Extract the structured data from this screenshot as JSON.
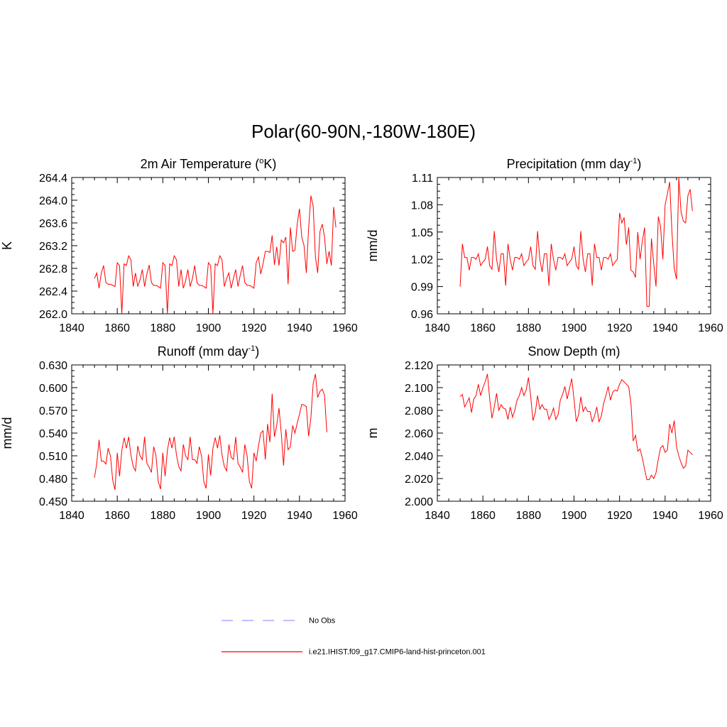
{
  "figure": {
    "title": "Polar(60-90N,-180W-180E)"
  },
  "legend": {
    "position": "bottom-center",
    "entries": [
      {
        "label": "No Obs",
        "color": "#9999ff",
        "style": "dashed"
      },
      {
        "label": "i.e21.IHIST.f09_g17.CMIP6-land-hist-princeton.001",
        "color": "#ff0000",
        "style": "solid"
      }
    ]
  },
  "chart_data": [
    {
      "type": "line",
      "title": "2m Air Temperature (",
      "title_sup": "o",
      "title_after": "K)",
      "ylabel": "K",
      "xlim": [
        1840,
        1960
      ],
      "ylim": [
        262.0,
        264.4
      ],
      "xticks": [
        1840,
        1860,
        1880,
        1900,
        1920,
        1940,
        1960
      ],
      "yticks": [
        "262.0",
        "262.4",
        "262.8",
        "263.2",
        "263.6",
        "264.0",
        "264.4"
      ],
      "x_start": 1850,
      "series": [
        {
          "color": "#ff0000",
          "values": [
            262.62,
            262.72,
            262.45,
            262.72,
            262.85,
            262.55,
            262.52,
            262.52,
            262.5,
            262.48,
            262.9,
            262.85,
            262.0,
            262.88,
            262.85,
            263.02,
            262.95,
            262.48,
            262.72,
            262.48,
            262.6,
            262.78,
            262.48,
            262.7,
            262.86,
            262.55,
            262.5,
            262.5,
            262.48,
            262.45,
            262.9,
            262.85,
            262.0,
            262.88,
            262.85,
            263.02,
            262.95,
            262.48,
            262.78,
            262.45,
            262.58,
            262.78,
            262.48,
            262.62,
            262.85,
            262.55,
            262.5,
            262.5,
            262.48,
            262.45,
            262.9,
            262.85,
            262.0,
            262.88,
            262.85,
            263.02,
            262.95,
            262.48,
            262.62,
            262.72,
            262.45,
            262.62,
            262.78,
            262.48,
            262.68,
            262.85,
            262.55,
            262.5,
            262.5,
            262.48,
            262.45,
            262.9,
            263.0,
            262.7,
            262.88,
            263.1,
            263.1,
            263.08,
            263.38,
            262.86,
            263.18,
            262.85,
            263.3,
            263.25,
            263.35,
            262.52,
            263.52,
            263.1,
            263.12,
            263.58,
            263.85,
            263.35,
            263.2,
            262.72,
            263.5,
            264.08,
            263.9,
            263.0,
            262.72,
            263.45,
            263.58,
            263.35,
            262.88,
            263.1,
            262.85,
            263.88,
            263.52
          ]
        }
      ]
    },
    {
      "type": "line",
      "title": "Precipitation (mm day",
      "title_sup": "-1",
      "title_after": ")",
      "ylabel": "mm/d",
      "xlim": [
        1840,
        1960
      ],
      "ylim": [
        0.96,
        1.11
      ],
      "xticks": [
        1840,
        1860,
        1880,
        1900,
        1920,
        1940,
        1960
      ],
      "yticks": [
        "0.96",
        "0.99",
        "1.02",
        "1.05",
        "1.08",
        "1.11"
      ],
      "x_start": 1850,
      "series": [
        {
          "color": "#ff0000",
          "values": [
            0.99,
            1.037,
            1.022,
            1.022,
            1.008,
            1.022,
            1.022,
            1.02,
            1.026,
            1.013,
            1.017,
            1.02,
            1.034,
            1.013,
            1.009,
            1.051,
            1.02,
            1.006,
            1.026,
            1.026,
            0.991,
            1.037,
            1.02,
            1.008,
            1.022,
            1.022,
            1.02,
            1.026,
            1.013,
            1.017,
            1.02,
            1.034,
            1.013,
            1.009,
            1.051,
            1.02,
            1.006,
            1.026,
            1.026,
            0.991,
            1.037,
            1.02,
            1.008,
            1.022,
            1.022,
            1.02,
            1.026,
            1.013,
            1.017,
            1.02,
            1.034,
            1.013,
            1.009,
            1.051,
            1.02,
            1.006,
            1.026,
            1.026,
            0.991,
            1.037,
            1.022,
            1.022,
            1.008,
            1.022,
            1.022,
            1.02,
            1.026,
            1.013,
            1.017,
            1.02,
            1.071,
            1.06,
            1.066,
            1.036,
            1.055,
            1.008,
            1.006,
            1.0,
            1.05,
            1.02,
            1.04,
            1.055,
            0.968,
            0.968,
            1.043,
            1.015,
            0.99,
            1.067,
            1.056,
            1.02,
            1.08,
            1.092,
            1.105,
            1.05,
            1.01,
            0.998,
            1.11,
            1.072,
            1.062,
            1.06,
            1.09,
            1.097,
            1.073
          ]
        }
      ]
    },
    {
      "type": "line",
      "title": "Runoff (mm day",
      "title_sup": "-1",
      "title_after": ")",
      "ylabel": "mm/d",
      "xlim": [
        1840,
        1960
      ],
      "ylim": [
        0.45,
        0.63
      ],
      "xticks": [
        1840,
        1860,
        1880,
        1900,
        1920,
        1940,
        1960
      ],
      "yticks": [
        "0.450",
        "0.480",
        "0.510",
        "0.540",
        "0.570",
        "0.600",
        "0.630"
      ],
      "x_start": 1850,
      "series": [
        {
          "color": "#ff0000",
          "values": [
            0.481,
            0.5,
            0.531,
            0.503,
            0.503,
            0.499,
            0.52,
            0.51,
            0.478,
            0.465,
            0.514,
            0.483,
            0.517,
            0.534,
            0.52,
            0.535,
            0.511,
            0.496,
            0.49,
            0.523,
            0.51,
            0.505,
            0.535,
            0.5,
            0.495,
            0.488,
            0.522,
            0.51,
            0.476,
            0.466,
            0.514,
            0.483,
            0.517,
            0.534,
            0.52,
            0.535,
            0.511,
            0.496,
            0.49,
            0.525,
            0.51,
            0.505,
            0.535,
            0.505,
            0.505,
            0.5,
            0.522,
            0.51,
            0.476,
            0.467,
            0.512,
            0.484,
            0.52,
            0.534,
            0.52,
            0.537,
            0.511,
            0.496,
            0.49,
            0.525,
            0.508,
            0.505,
            0.535,
            0.5,
            0.495,
            0.488,
            0.525,
            0.51,
            0.476,
            0.467,
            0.514,
            0.503,
            0.523,
            0.54,
            0.543,
            0.505,
            0.552,
            0.528,
            0.592,
            0.535,
            0.55,
            0.573,
            0.54,
            0.497,
            0.545,
            0.518,
            0.522,
            0.55,
            0.54,
            0.553,
            0.565,
            0.578,
            0.577,
            0.575,
            0.536,
            0.56,
            0.605,
            0.618,
            0.587,
            0.595,
            0.598,
            0.59,
            0.541
          ]
        }
      ]
    },
    {
      "type": "line",
      "title": "Snow Depth (m)",
      "title_sup": "",
      "title_after": "",
      "ylabel": "m",
      "xlim": [
        1840,
        1960
      ],
      "ylim": [
        2.0,
        2.12
      ],
      "xticks": [
        1840,
        1860,
        1880,
        1900,
        1920,
        1940,
        1960
      ],
      "yticks": [
        "2.000",
        "2.020",
        "2.040",
        "2.060",
        "2.080",
        "2.100",
        "2.120"
      ],
      "x_start": 1850,
      "series": [
        {
          "color": "#ff0000",
          "values": [
            2.092,
            2.094,
            2.083,
            2.087,
            2.091,
            2.078,
            2.09,
            2.093,
            2.103,
            2.093,
            2.1,
            2.105,
            2.112,
            2.09,
            2.073,
            2.083,
            2.095,
            2.08,
            2.085,
            2.082,
            2.081,
            2.072,
            2.083,
            2.074,
            2.08,
            2.089,
            2.093,
            2.1,
            2.093,
            2.098,
            2.109,
            2.092,
            2.071,
            2.078,
            2.093,
            2.081,
            2.085,
            2.081,
            2.081,
            2.072,
            2.076,
            2.082,
            2.072,
            2.076,
            2.089,
            2.094,
            2.101,
            2.09,
            2.099,
            2.108,
            2.09,
            2.07,
            2.076,
            2.092,
            2.079,
            2.083,
            2.079,
            2.079,
            2.07,
            2.075,
            2.083,
            2.07,
            2.075,
            2.086,
            2.093,
            2.101,
            2.089,
            2.096,
            2.098,
            2.097,
            2.103,
            2.107,
            2.105,
            2.103,
            2.101,
            2.086,
            2.053,
            2.058,
            2.044,
            2.046,
            2.038,
            2.028,
            2.019,
            2.019,
            2.023,
            2.02,
            2.025,
            2.037,
            2.047,
            2.049,
            2.043,
            2.045,
            2.068,
            2.06,
            2.071,
            2.048,
            2.04,
            2.034,
            2.029,
            2.031,
            2.045,
            2.043,
            2.041
          ]
        }
      ]
    }
  ]
}
